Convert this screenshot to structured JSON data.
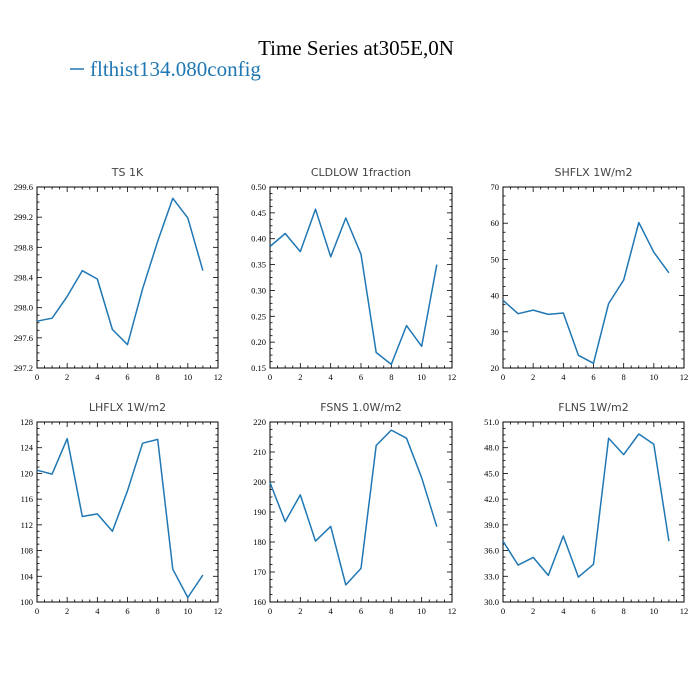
{
  "title": "Time Series at305E,0N",
  "legend": {
    "label": "flthist134.080config",
    "color": "#1f77b4"
  },
  "chart_data": [
    {
      "type": "line",
      "title": "TS   1K",
      "x": [
        0,
        1,
        2,
        3,
        4,
        5,
        6,
        7,
        8,
        9,
        10,
        11
      ],
      "series": [
        {
          "values": [
            297.82,
            297.86,
            298.15,
            298.49,
            298.38,
            297.71,
            297.51,
            298.25,
            298.88,
            299.45,
            299.19,
            298.49
          ]
        }
      ],
      "xlim": [
        0,
        12
      ],
      "ylim": [
        297.2,
        299.6
      ],
      "xticks": [
        0,
        2,
        4,
        6,
        8,
        10,
        12
      ],
      "yticks": [
        "297.2",
        "297.6",
        "298.0",
        "298.4",
        "298.8",
        "299.2",
        "299.6"
      ]
    },
    {
      "type": "line",
      "title": "CLDLOW   1fraction",
      "x": [
        0,
        1,
        2,
        3,
        4,
        5,
        6,
        7,
        8,
        9,
        10,
        11
      ],
      "series": [
        {
          "values": [
            0.385,
            0.41,
            0.375,
            0.457,
            0.365,
            0.44,
            0.37,
            0.18,
            0.157,
            0.232,
            0.192,
            0.35
          ]
        }
      ],
      "xlim": [
        0,
        12
      ],
      "ylim": [
        0.15,
        0.5
      ],
      "xticks": [
        0,
        2,
        4,
        6,
        8,
        10,
        12
      ],
      "yticks": [
        "0.15",
        "0.20",
        "0.25",
        "0.30",
        "0.35",
        "0.40",
        "0.45",
        "0.50"
      ]
    },
    {
      "type": "line",
      "title": "SHFLX   1W/m2",
      "x": [
        0,
        1,
        2,
        3,
        4,
        5,
        6,
        7,
        8,
        9,
        10,
        11
      ],
      "series": [
        {
          "values": [
            38.7,
            35.0,
            36.0,
            34.8,
            35.2,
            23.5,
            21.3,
            37.8,
            44.3,
            60.2,
            52.0,
            46.3
          ]
        }
      ],
      "xlim": [
        0,
        12
      ],
      "ylim": [
        20,
        70
      ],
      "xticks": [
        0,
        2,
        4,
        6,
        8,
        10,
        12
      ],
      "yticks": [
        "20",
        "30",
        "40",
        "50",
        "60",
        "70"
      ]
    },
    {
      "type": "line",
      "title": "LHFLX   1W/m2",
      "x": [
        0,
        1,
        2,
        3,
        4,
        5,
        6,
        7,
        8,
        9,
        10,
        11
      ],
      "series": [
        {
          "values": [
            120.5,
            119.9,
            125.4,
            113.3,
            113.7,
            111.0,
            117.3,
            124.7,
            125.3,
            105.1,
            100.7,
            104.2
          ]
        }
      ],
      "xlim": [
        0,
        12
      ],
      "ylim": [
        100,
        128
      ],
      "xticks": [
        0,
        2,
        4,
        6,
        8,
        10,
        12
      ],
      "yticks": [
        "100",
        "104",
        "108",
        "112",
        "116",
        "120",
        "124",
        "128"
      ]
    },
    {
      "type": "line",
      "title": "FSNS   1.0W/m2",
      "x": [
        0,
        1,
        2,
        3,
        4,
        5,
        6,
        7,
        8,
        9,
        10,
        11
      ],
      "series": [
        {
          "values": [
            199.8,
            186.8,
            195.7,
            180.3,
            185.2,
            165.7,
            171.2,
            212.2,
            217.3,
            214.6,
            201.4,
            185.1
          ]
        }
      ],
      "xlim": [
        0,
        12
      ],
      "ylim": [
        160,
        220
      ],
      "xticks": [
        0,
        2,
        4,
        6,
        8,
        10,
        12
      ],
      "yticks": [
        "160",
        "170",
        "180",
        "190",
        "200",
        "210",
        "220"
      ]
    },
    {
      "type": "line",
      "title": "FLNS   1W/m2",
      "x": [
        0,
        1,
        2,
        3,
        4,
        5,
        6,
        7,
        8,
        9,
        10,
        11
      ],
      "series": [
        {
          "values": [
            37.1,
            34.3,
            35.2,
            33.1,
            37.7,
            32.9,
            34.4,
            49.1,
            47.2,
            49.6,
            48.4,
            37.1
          ]
        }
      ],
      "xlim": [
        0,
        12
      ],
      "ylim": [
        30,
        51
      ],
      "xticks": [
        0,
        2,
        4,
        6,
        8,
        10,
        12
      ],
      "yticks": [
        "30.0",
        "33.0",
        "36.0",
        "39.0",
        "42.0",
        "45.0",
        "48.0",
        "51.0"
      ]
    }
  ]
}
